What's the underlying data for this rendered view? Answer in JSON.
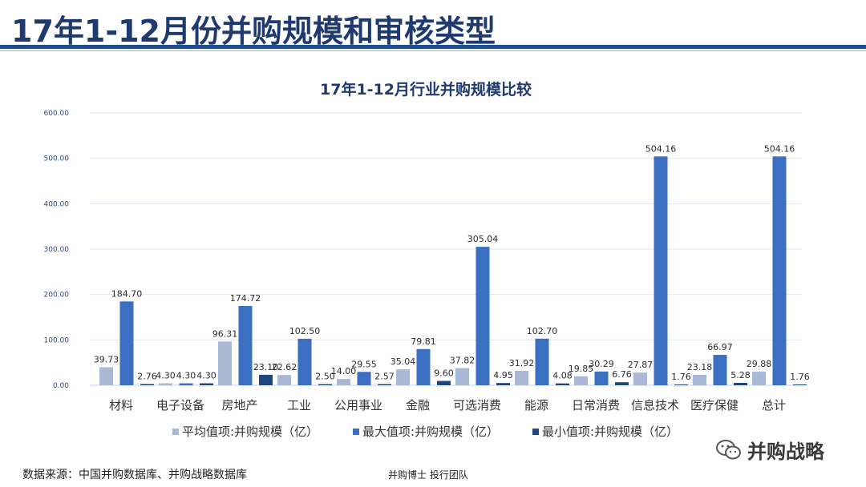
{
  "page": {
    "title": "17年1-12月份并购规模和审核类型",
    "source": "数据来源：中国并购数据库、并购战略数据库",
    "team": "并购博士 投行团队",
    "watermark": "并购战略",
    "watermark_icon": "wechat-icon"
  },
  "chart_data": {
    "type": "bar",
    "title": "17年1-12月行业并购规模比较",
    "categories": [
      "材料",
      "电子设备",
      "房地产",
      "工业",
      "公用事业",
      "金融",
      "可选消费",
      "能源",
      "日常消费",
      "信息技术",
      "医疗保健",
      "总计"
    ],
    "series": [
      {
        "name": "平均值项:并购规模（亿）",
        "color": "#a9b8d4",
        "values": [
          39.73,
          4.3,
          96.31,
          22.62,
          14.0,
          35.04,
          37.82,
          31.92,
          19.85,
          27.87,
          23.18,
          29.88
        ]
      },
      {
        "name": "最大值项:并购规模（亿）",
        "color": "#3a6fc2",
        "values": [
          184.7,
          4.3,
          174.72,
          102.5,
          29.55,
          79.81,
          305.04,
          102.7,
          30.29,
          504.16,
          66.97,
          504.16
        ]
      },
      {
        "name": "最小值项:并购规模（亿）",
        "color": "#1f477f",
        "values": [
          2.76,
          4.3,
          23.1,
          2.5,
          2.57,
          9.6,
          4.95,
          4.08,
          6.76,
          1.76,
          5.28,
          1.76
        ]
      }
    ],
    "ylim": [
      0,
      600
    ],
    "yticks": [
      "0.00",
      "100.00",
      "200.00",
      "300.00",
      "400.00",
      "500.00",
      "600.00"
    ],
    "grid": true,
    "legend": "bottom"
  }
}
